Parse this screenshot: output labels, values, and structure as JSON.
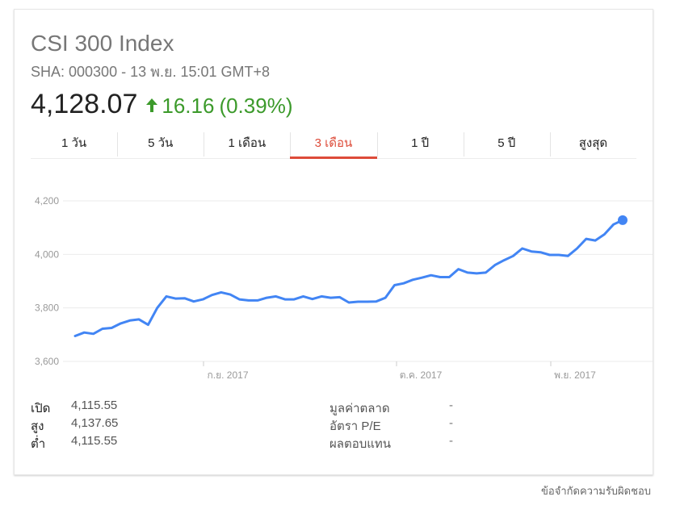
{
  "header": {
    "title": "CSI 300 Index",
    "subtitle": "SHA: 000300 - 13 พ.ย. 15:01 GMT+8",
    "price": "4,128.07",
    "change": "16.16",
    "change_pct": "(0.39%)",
    "change_color": "#3c9a2b"
  },
  "tabs": [
    {
      "label": "1 วัน"
    },
    {
      "label": "5 วัน"
    },
    {
      "label": "1 เดือน"
    },
    {
      "label": "3 เดือน",
      "active": true
    },
    {
      "label": "1 ปี"
    },
    {
      "label": "5 ปี"
    },
    {
      "label": "สูงสุด"
    }
  ],
  "chart_data": {
    "type": "line",
    "line_color": "#4285f4",
    "ylim": [
      3600,
      4200
    ],
    "y_ticks": [
      3600,
      3800,
      4000,
      4200
    ],
    "y_tick_labels": [
      "3,600",
      "3,800",
      "4,000",
      "4,200"
    ],
    "x_tick_labels": [
      "ก.ย. 2017",
      "ต.ค. 2017",
      "พ.ย. 2017"
    ],
    "grid": true,
    "series": [
      {
        "values": [
          3695,
          3708,
          3703,
          3722,
          3725,
          3742,
          3753,
          3757,
          3737,
          3800,
          3843,
          3835,
          3836,
          3824,
          3832,
          3848,
          3858,
          3850,
          3832,
          3828,
          3828,
          3838,
          3843,
          3832,
          3832,
          3843,
          3833,
          3843,
          3838,
          3840,
          3820,
          3823,
          3823,
          3824,
          3838,
          3885,
          3892,
          3905,
          3913,
          3922,
          3915,
          3915,
          3945,
          3932,
          3929,
          3932,
          3960,
          3978,
          3994,
          4022,
          4011,
          4008,
          3998,
          3998,
          3994,
          4022,
          4058,
          4052,
          4075,
          4112,
          4128
        ]
      }
    ]
  },
  "stats": {
    "rows": [
      {
        "label": "เปิด",
        "value": "4,115.55",
        "label2": "มูลค่าตลาด",
        "value2": "-"
      },
      {
        "label": "สูง",
        "value": "4,137.65",
        "label2": "อัตรา P/E",
        "value2": "-"
      },
      {
        "label": "ต่ำ",
        "value": "4,115.55",
        "label2": "ผลตอบแทน",
        "value2": "-"
      }
    ]
  },
  "footer": {
    "disclaimer": "ข้อจำกัดความรับผิดชอบ"
  }
}
